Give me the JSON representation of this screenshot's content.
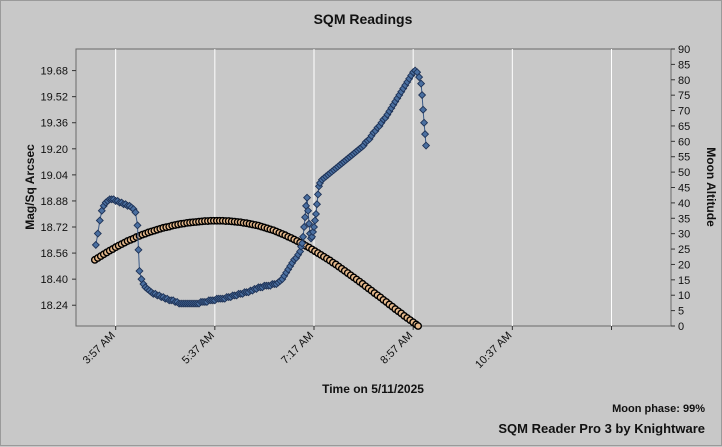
{
  "chart_data": {
    "type": "scatter",
    "title": "SQM Readings",
    "xlabel": "Time on 5/11/2025",
    "ylabel_left": "Mag/Sq Arcsec",
    "ylabel_right": "Moon Altitude",
    "x_tick_labels": [
      "3:57 AM",
      "5:37 AM",
      "7:17 AM",
      "8:57 AM",
      "10:37 AM"
    ],
    "x_ticks_minutes": [
      237,
      337,
      437,
      537,
      637
    ],
    "x_range_minutes": [
      197,
      797
    ],
    "y_left_range": [
      18.1125,
      19.8125
    ],
    "y_left_ticks": [
      18.24,
      18.4,
      18.56,
      18.72,
      18.88,
      19.04,
      19.2,
      19.36,
      19.52,
      19.68
    ],
    "y_right_range": [
      0,
      90
    ],
    "y_right_ticks": [
      0,
      5,
      10,
      15,
      20,
      25,
      30,
      35,
      40,
      45,
      50,
      55,
      60,
      65,
      70,
      75,
      80,
      85,
      90
    ],
    "grid": true,
    "series": [
      {
        "axis": "left",
        "marker": "diamond",
        "color": "#4a6fa0",
        "points": [
          [
            217,
            18.61
          ],
          [
            219,
            18.68
          ],
          [
            221,
            18.76
          ],
          [
            223,
            18.82
          ],
          [
            225,
            18.85
          ],
          [
            227,
            18.87
          ],
          [
            229,
            18.88
          ],
          [
            231,
            18.89
          ],
          [
            233,
            18.89
          ],
          [
            235,
            18.89
          ],
          [
            237,
            18.88
          ],
          [
            239,
            18.88
          ],
          [
            241,
            18.87
          ],
          [
            243,
            18.87
          ],
          [
            245,
            18.86
          ],
          [
            247,
            18.86
          ],
          [
            249,
            18.85
          ],
          [
            251,
            18.85
          ],
          [
            253,
            18.84
          ],
          [
            255,
            18.83
          ],
          [
            257,
            18.81
          ],
          [
            259,
            18.73
          ],
          [
            260,
            18.58
          ],
          [
            261,
            18.45
          ],
          [
            263,
            18.4
          ],
          [
            265,
            18.37
          ],
          [
            267,
            18.35
          ],
          [
            269,
            18.34
          ],
          [
            271,
            18.33
          ],
          [
            273,
            18.32
          ],
          [
            275,
            18.31
          ],
          [
            277,
            18.31
          ],
          [
            279,
            18.3
          ],
          [
            281,
            18.3
          ],
          [
            283,
            18.29
          ],
          [
            285,
            18.29
          ],
          [
            287,
            18.28
          ],
          [
            289,
            18.28
          ],
          [
            291,
            18.27
          ],
          [
            293,
            18.27
          ],
          [
            295,
            18.27
          ],
          [
            297,
            18.26
          ],
          [
            299,
            18.26
          ],
          [
            301,
            18.25
          ],
          [
            303,
            18.25
          ],
          [
            305,
            18.25
          ],
          [
            307,
            18.25
          ],
          [
            309,
            18.25
          ],
          [
            311,
            18.25
          ],
          [
            313,
            18.25
          ],
          [
            315,
            18.25
          ],
          [
            317,
            18.25
          ],
          [
            319,
            18.25
          ],
          [
            321,
            18.25
          ],
          [
            323,
            18.26
          ],
          [
            325,
            18.26
          ],
          [
            327,
            18.26
          ],
          [
            329,
            18.26
          ],
          [
            331,
            18.27
          ],
          [
            333,
            18.27
          ],
          [
            335,
            18.27
          ],
          [
            337,
            18.27
          ],
          [
            339,
            18.28
          ],
          [
            341,
            18.28
          ],
          [
            343,
            18.28
          ],
          [
            345,
            18.28
          ],
          [
            347,
            18.28
          ],
          [
            349,
            18.29
          ],
          [
            351,
            18.29
          ],
          [
            353,
            18.29
          ],
          [
            355,
            18.3
          ],
          [
            357,
            18.3
          ],
          [
            359,
            18.3
          ],
          [
            361,
            18.31
          ],
          [
            363,
            18.31
          ],
          [
            365,
            18.31
          ],
          [
            367,
            18.32
          ],
          [
            369,
            18.32
          ],
          [
            371,
            18.32
          ],
          [
            373,
            18.33
          ],
          [
            375,
            18.33
          ],
          [
            377,
            18.34
          ],
          [
            379,
            18.34
          ],
          [
            381,
            18.35
          ],
          [
            383,
            18.35
          ],
          [
            385,
            18.35
          ],
          [
            387,
            18.36
          ],
          [
            389,
            18.36
          ],
          [
            391,
            18.36
          ],
          [
            393,
            18.36
          ],
          [
            395,
            18.37
          ],
          [
            397,
            18.37
          ],
          [
            399,
            18.37
          ],
          [
            401,
            18.38
          ],
          [
            403,
            18.39
          ],
          [
            405,
            18.4
          ],
          [
            407,
            18.42
          ],
          [
            409,
            18.44
          ],
          [
            411,
            18.46
          ],
          [
            413,
            18.48
          ],
          [
            415,
            18.5
          ],
          [
            417,
            18.52
          ],
          [
            419,
            18.53
          ],
          [
            421,
            18.55
          ],
          [
            423,
            18.57
          ],
          [
            424,
            18.6
          ],
          [
            425,
            18.62
          ],
          [
            426,
            18.66
          ],
          [
            427,
            18.72
          ],
          [
            428,
            18.78
          ],
          [
            429,
            18.85
          ],
          [
            430,
            18.9
          ],
          [
            431,
            18.82
          ],
          [
            432,
            18.74
          ],
          [
            433,
            18.68
          ],
          [
            434,
            18.65
          ],
          [
            435,
            18.66
          ],
          [
            436,
            18.69
          ],
          [
            437,
            18.72
          ],
          [
            438,
            18.76
          ],
          [
            439,
            18.8
          ],
          [
            440,
            18.86
          ],
          [
            441,
            18.92
          ],
          [
            442,
            18.97
          ],
          [
            443,
            18.99
          ],
          [
            445,
            19.01
          ],
          [
            447,
            19.02
          ],
          [
            449,
            19.03
          ],
          [
            451,
            19.04
          ],
          [
            453,
            19.05
          ],
          [
            455,
            19.06
          ],
          [
            457,
            19.07
          ],
          [
            459,
            19.08
          ],
          [
            461,
            19.09
          ],
          [
            463,
            19.1
          ],
          [
            465,
            19.11
          ],
          [
            467,
            19.12
          ],
          [
            469,
            19.13
          ],
          [
            471,
            19.14
          ],
          [
            473,
            19.15
          ],
          [
            475,
            19.16
          ],
          [
            477,
            19.17
          ],
          [
            479,
            19.18
          ],
          [
            481,
            19.19
          ],
          [
            483,
            19.2
          ],
          [
            485,
            19.21
          ],
          [
            487,
            19.22
          ],
          [
            489,
            19.24
          ],
          [
            491,
            19.25
          ],
          [
            493,
            19.26
          ],
          [
            495,
            19.28
          ],
          [
            497,
            19.3
          ],
          [
            499,
            19.31
          ],
          [
            501,
            19.33
          ],
          [
            503,
            19.34
          ],
          [
            505,
            19.36
          ],
          [
            507,
            19.38
          ],
          [
            509,
            19.39
          ],
          [
            511,
            19.41
          ],
          [
            513,
            19.43
          ],
          [
            515,
            19.45
          ],
          [
            517,
            19.47
          ],
          [
            519,
            19.49
          ],
          [
            521,
            19.51
          ],
          [
            523,
            19.53
          ],
          [
            525,
            19.55
          ],
          [
            527,
            19.57
          ],
          [
            529,
            19.59
          ],
          [
            531,
            19.61
          ],
          [
            533,
            19.63
          ],
          [
            535,
            19.65
          ],
          [
            537,
            19.67
          ],
          [
            539,
            19.68
          ],
          [
            541,
            19.67
          ],
          [
            543,
            19.64
          ],
          [
            545,
            19.6
          ],
          [
            546,
            19.53
          ],
          [
            547,
            19.44
          ],
          [
            548,
            19.36
          ],
          [
            549,
            19.29
          ],
          [
            550,
            19.22
          ]
        ]
      },
      {
        "axis": "right",
        "marker": "circle",
        "color": "#e6b98c",
        "points": [
          [
            216,
            21.5
          ],
          [
            219,
            22.1
          ],
          [
            222,
            22.7
          ],
          [
            225,
            23.3
          ],
          [
            228,
            23.9
          ],
          [
            231,
            24.5
          ],
          [
            234,
            25.0
          ],
          [
            237,
            25.6
          ],
          [
            240,
            26.1
          ],
          [
            243,
            26.6
          ],
          [
            246,
            27.1
          ],
          [
            249,
            27.6
          ],
          [
            252,
            28.0
          ],
          [
            255,
            28.4
          ],
          [
            258,
            28.9
          ],
          [
            261,
            29.3
          ],
          [
            264,
            29.7
          ],
          [
            267,
            30.0
          ],
          [
            270,
            30.4
          ],
          [
            273,
            30.7
          ],
          [
            276,
            31.0
          ],
          [
            279,
            31.3
          ],
          [
            282,
            31.6
          ],
          [
            285,
            31.9
          ],
          [
            288,
            32.1
          ],
          [
            291,
            32.3
          ],
          [
            294,
            32.6
          ],
          [
            297,
            32.8
          ],
          [
            300,
            33.0
          ],
          [
            303,
            33.2
          ],
          [
            306,
            33.3
          ],
          [
            309,
            33.5
          ],
          [
            312,
            33.6
          ],
          [
            315,
            33.7
          ],
          [
            318,
            33.8
          ],
          [
            321,
            33.9
          ],
          [
            324,
            34.0
          ],
          [
            327,
            34.1
          ],
          [
            330,
            34.1
          ],
          [
            333,
            34.2
          ],
          [
            336,
            34.2
          ],
          [
            339,
            34.2
          ],
          [
            342,
            34.2
          ],
          [
            345,
            34.2
          ],
          [
            348,
            34.1
          ],
          [
            351,
            34.1
          ],
          [
            354,
            34.0
          ],
          [
            357,
            33.9
          ],
          [
            360,
            33.8
          ],
          [
            363,
            33.7
          ],
          [
            366,
            33.5
          ],
          [
            369,
            33.4
          ],
          [
            372,
            33.2
          ],
          [
            375,
            33.0
          ],
          [
            378,
            32.8
          ],
          [
            381,
            32.6
          ],
          [
            384,
            32.3
          ],
          [
            387,
            32.0
          ],
          [
            390,
            31.7
          ],
          [
            393,
            31.4
          ],
          [
            396,
            31.1
          ],
          [
            399,
            30.7
          ],
          [
            402,
            30.3
          ],
          [
            405,
            29.9
          ],
          [
            408,
            29.5
          ],
          [
            411,
            29.0
          ],
          [
            414,
            28.6
          ],
          [
            417,
            28.1
          ],
          [
            420,
            27.6
          ],
          [
            423,
            27.1
          ],
          [
            426,
            26.6
          ],
          [
            429,
            26.0
          ],
          [
            432,
            25.5
          ],
          [
            435,
            24.9
          ],
          [
            438,
            24.3
          ],
          [
            441,
            23.7
          ],
          [
            444,
            23.1
          ],
          [
            447,
            22.5
          ],
          [
            450,
            21.9
          ],
          [
            453,
            21.3
          ],
          [
            456,
            20.6
          ],
          [
            459,
            20.0
          ],
          [
            462,
            19.3
          ],
          [
            465,
            18.6
          ],
          [
            468,
            17.9
          ],
          [
            471,
            17.2
          ],
          [
            474,
            16.5
          ],
          [
            477,
            15.8
          ],
          [
            480,
            15.1
          ],
          [
            483,
            14.4
          ],
          [
            486,
            13.7
          ],
          [
            489,
            12.9
          ],
          [
            492,
            12.2
          ],
          [
            495,
            11.5
          ],
          [
            498,
            10.7
          ],
          [
            501,
            10.0
          ],
          [
            504,
            9.3
          ],
          [
            507,
            8.5
          ],
          [
            510,
            7.8
          ],
          [
            513,
            7.0
          ],
          [
            516,
            6.3
          ],
          [
            519,
            5.5
          ],
          [
            522,
            4.8
          ],
          [
            525,
            4.1
          ],
          [
            528,
            3.3
          ],
          [
            531,
            2.6
          ],
          [
            534,
            1.9
          ],
          [
            537,
            1.2
          ],
          [
            540,
            0.5
          ],
          [
            542,
            0.0
          ]
        ]
      }
    ]
  },
  "footer": {
    "moon_phase": "Moon phase: 99%",
    "credit": "SQM Reader Pro 3 by Knightware"
  }
}
